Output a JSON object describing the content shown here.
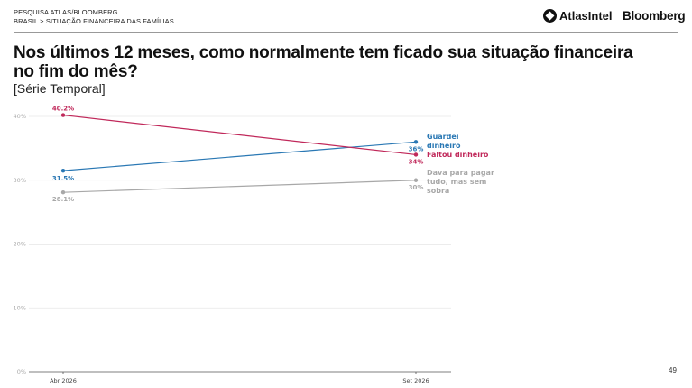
{
  "header": {
    "line1": "PESQUISA ATLAS/BLOOMBERG",
    "line2": "BRASIL > SITUAÇÃO FINANCEIRA DAS FAMÍLIAS",
    "atlas_logo": "AtlasIntel",
    "bloomberg_logo": "Bloomberg"
  },
  "title": "Nos últimos 12 meses, como normalmente tem ficado sua situação financeira no fim do mês?",
  "subtitle": "[Série Temporal]",
  "page_number": "49",
  "chart_data": {
    "type": "line",
    "x": [
      "Abr 2026",
      "Set 2026"
    ],
    "ylim": [
      0,
      40
    ],
    "yticks": [
      0,
      10,
      20,
      30,
      40
    ],
    "ytick_labels": [
      "0%",
      "10%",
      "20%",
      "30%",
      "40%"
    ],
    "grid": true,
    "series": [
      {
        "name": "Guardei dinheiro",
        "label_lines": [
          "Guardei",
          "dinheiro"
        ],
        "color": "#2a78b4",
        "values": [
          31.5,
          36
        ],
        "value_labels": [
          "31.5%",
          "36%"
        ]
      },
      {
        "name": "Faltou dinheiro",
        "label_lines": [
          "Faltou dinheiro"
        ],
        "color": "#c0285a",
        "values": [
          40.2,
          34
        ],
        "value_labels": [
          "40.2%",
          "34%"
        ]
      },
      {
        "name": "Dava para pagar tudo, mas sem sobra",
        "label_lines": [
          "Dava para pagar",
          "tudo, mas sem",
          "sobra"
        ],
        "color": "#a8a8a8",
        "values": [
          28.1,
          30
        ],
        "value_labels": [
          "28.1%",
          "30%"
        ]
      }
    ]
  }
}
